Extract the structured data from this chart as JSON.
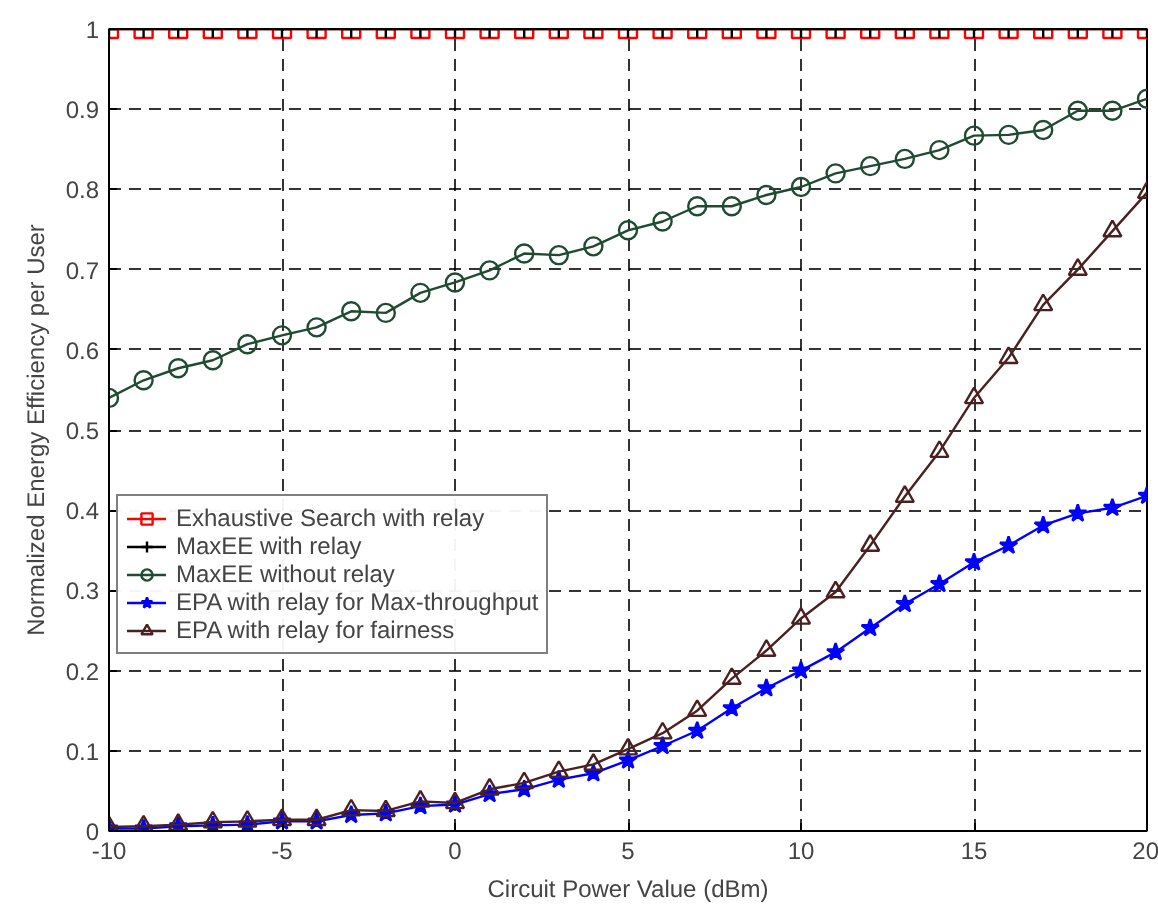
{
  "chart_data": {
    "type": "line",
    "xlabel": "Circuit Power Value (dBm)",
    "ylabel": "Normalized Energy Efficiency per User",
    "x": [
      -10,
      -9,
      -8,
      -7,
      -6,
      -5,
      -4,
      -3,
      -2,
      -1,
      0,
      1,
      2,
      3,
      4,
      5,
      6,
      7,
      8,
      9,
      10,
      11,
      12,
      13,
      14,
      15,
      16,
      17,
      18,
      19,
      20
    ],
    "xlim": [
      -10,
      20
    ],
    "xticks": [
      -10,
      -5,
      0,
      5,
      10,
      15,
      20
    ],
    "ylim": [
      0,
      1
    ],
    "yticks": [
      0,
      0.1,
      0.2,
      0.3,
      0.4,
      0.5,
      0.6,
      0.7,
      0.8,
      0.9,
      1
    ],
    "grid": true,
    "legend": "left",
    "line_style": "solid",
    "series": [
      {
        "name": "Exhaustive Search with relay",
        "color": "#ff0000",
        "marker": "square",
        "values": [
          1,
          1,
          1,
          1,
          1,
          1,
          1,
          1,
          1,
          1,
          1,
          1,
          1,
          1,
          1,
          1,
          1,
          1,
          1,
          1,
          1,
          1,
          1,
          1,
          1,
          1,
          1,
          1,
          1,
          1,
          1
        ]
      },
      {
        "name": "MaxEE with relay",
        "color": "#000000",
        "marker": "cross",
        "values": [
          1,
          1,
          1,
          1,
          1,
          1,
          1,
          1,
          1,
          1,
          1,
          1,
          1,
          1,
          1,
          1,
          1,
          1,
          1,
          1,
          1,
          1,
          1,
          1,
          1,
          1,
          1,
          1,
          1,
          1,
          1
        ]
      },
      {
        "name": "MaxEE without relay",
        "color": "#1e4b32",
        "marker": "circle",
        "values": [
          0.54,
          0.562,
          0.577,
          0.587,
          0.607,
          0.618,
          0.628,
          0.648,
          0.646,
          0.671,
          0.684,
          0.699,
          0.72,
          0.718,
          0.729,
          0.749,
          0.76,
          0.779,
          0.779,
          0.793,
          0.803,
          0.82,
          0.829,
          0.838,
          0.849,
          0.867,
          0.868,
          0.874,
          0.898,
          0.898,
          0.913
        ]
      },
      {
        "name": "EPA with relay for Max-throughput",
        "color": "#0000ff",
        "marker": "star",
        "values": [
          0.003,
          0.003,
          0.006,
          0.007,
          0.008,
          0.012,
          0.012,
          0.02,
          0.022,
          0.031,
          0.033,
          0.046,
          0.052,
          0.064,
          0.072,
          0.088,
          0.106,
          0.125,
          0.153,
          0.178,
          0.2,
          0.223,
          0.253,
          0.283,
          0.308,
          0.335,
          0.356,
          0.381,
          0.396,
          0.403,
          0.418
        ]
      },
      {
        "name": "EPA with relay for fairness",
        "color": "#4a2020",
        "marker": "triangle",
        "values": [
          0.005,
          0.006,
          0.008,
          0.011,
          0.012,
          0.014,
          0.014,
          0.026,
          0.025,
          0.037,
          0.035,
          0.052,
          0.06,
          0.074,
          0.083,
          0.102,
          0.122,
          0.15,
          0.19,
          0.225,
          0.265,
          0.298,
          0.356,
          0.417,
          0.473,
          0.54,
          0.59,
          0.656,
          0.7,
          0.748,
          0.796
        ]
      }
    ]
  }
}
